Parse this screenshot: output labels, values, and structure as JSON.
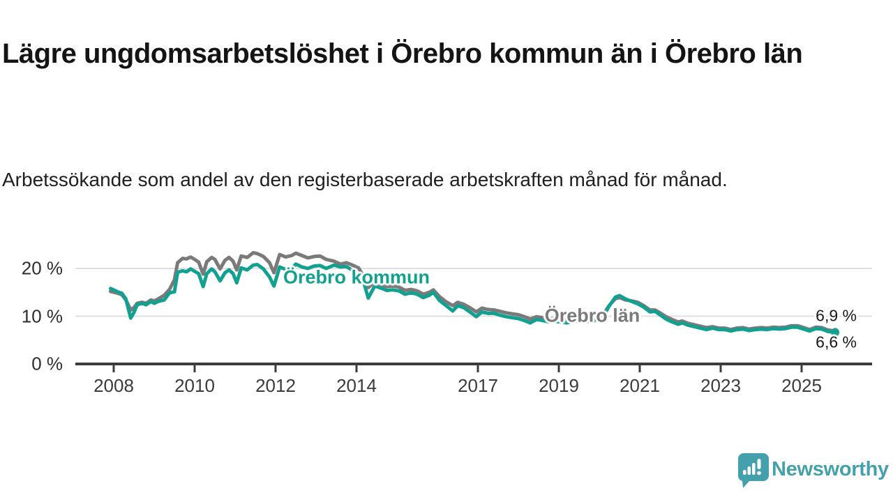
{
  "header": {
    "title": "Lägre ungdomsarbetslöshet i Örebro kommun än i Örebro län",
    "subtitle": "Arbetssökande som andel av den registerbaserade arbetskraften månad för månad."
  },
  "footer": {
    "brand": "Newsworthy",
    "brand_color": "#44a0aa"
  },
  "chart_data": {
    "type": "line",
    "title": "Lägre ungdomsarbetslöshet i Örebro kommun än i Örebro län",
    "subtitle": "Arbetssökande som andel av den registerbaserade arbetskraften månad för månad.",
    "unit": "%",
    "grid": "horizontal",
    "legend": "inline-labels",
    "xlabel": "",
    "ylabel": "",
    "ylim": [
      0,
      24.5
    ],
    "x_domain": [
      2007.9,
      2026.5
    ],
    "y_ticks": [
      {
        "value": 20,
        "label": "20 %"
      },
      {
        "value": 10,
        "label": "10 %"
      },
      {
        "value": 0,
        "label": "0 %"
      }
    ],
    "x_ticks": [
      {
        "year": 2008,
        "label": "2008"
      },
      {
        "year": 2010,
        "label": "2010"
      },
      {
        "year": 2012,
        "label": "2012"
      },
      {
        "year": 2014,
        "label": "2014"
      },
      {
        "year": 2017,
        "label": "2017"
      },
      {
        "year": 2019,
        "label": "2019"
      },
      {
        "year": 2021,
        "label": "2021"
      },
      {
        "year": 2023,
        "label": "2023"
      },
      {
        "year": 2025,
        "label": "2025"
      }
    ],
    "series": [
      {
        "id": "kommun",
        "name": "Örebro kommun",
        "color": "#12a190",
        "last_value": 6.6,
        "last_value_label": "6,6 %",
        "points": [
          [
            2007.92,
            15.8
          ],
          [
            2008.1,
            15.1
          ],
          [
            2008.2,
            14.8
          ],
          [
            2008.3,
            13.6
          ],
          [
            2008.42,
            9.6
          ],
          [
            2008.5,
            10.8
          ],
          [
            2008.58,
            12.4
          ],
          [
            2008.7,
            12.7
          ],
          [
            2008.8,
            12.4
          ],
          [
            2008.92,
            13.1
          ],
          [
            2009.0,
            12.7
          ],
          [
            2009.1,
            13.1
          ],
          [
            2009.25,
            13.4
          ],
          [
            2009.38,
            14.9
          ],
          [
            2009.5,
            15.1
          ],
          [
            2009.58,
            19.2
          ],
          [
            2009.7,
            19.5
          ],
          [
            2009.8,
            19.3
          ],
          [
            2009.9,
            19.9
          ],
          [
            2010.0,
            19.4
          ],
          [
            2010.1,
            18.9
          ],
          [
            2010.21,
            16.2
          ],
          [
            2010.3,
            18.9
          ],
          [
            2010.42,
            19.9
          ],
          [
            2010.5,
            19.3
          ],
          [
            2010.63,
            17.4
          ],
          [
            2010.75,
            19.1
          ],
          [
            2010.85,
            19.7
          ],
          [
            2010.95,
            18.9
          ],
          [
            2011.04,
            17.0
          ],
          [
            2011.15,
            20.1
          ],
          [
            2011.3,
            19.7
          ],
          [
            2011.45,
            20.7
          ],
          [
            2011.55,
            20.8
          ],
          [
            2011.7,
            19.9
          ],
          [
            2011.85,
            18.2
          ],
          [
            2011.96,
            16.3
          ],
          [
            2012.1,
            20.3
          ],
          [
            2012.25,
            19.8
          ],
          [
            2012.4,
            20.0
          ],
          [
            2012.5,
            20.9
          ],
          [
            2012.65,
            20.3
          ],
          [
            2012.8,
            20.0
          ],
          [
            2012.95,
            20.5
          ],
          [
            2013.1,
            20.6
          ],
          [
            2013.25,
            20.0
          ],
          [
            2013.45,
            20.7
          ],
          [
            2013.6,
            20.3
          ],
          [
            2013.75,
            20.4
          ],
          [
            2013.9,
            19.6
          ],
          [
            2014.05,
            18.5
          ],
          [
            2014.2,
            16.5
          ],
          [
            2014.29,
            13.8
          ],
          [
            2014.45,
            16.3
          ],
          [
            2014.6,
            15.9
          ],
          [
            2014.75,
            15.4
          ],
          [
            2014.9,
            15.5
          ],
          [
            2015.05,
            15.3
          ],
          [
            2015.2,
            14.6
          ],
          [
            2015.35,
            14.9
          ],
          [
            2015.5,
            14.6
          ],
          [
            2015.65,
            13.9
          ],
          [
            2015.8,
            14.4
          ],
          [
            2015.9,
            15.0
          ],
          [
            2016.05,
            13.3
          ],
          [
            2016.2,
            12.3
          ],
          [
            2016.38,
            11.1
          ],
          [
            2016.5,
            12.2
          ],
          [
            2016.65,
            11.8
          ],
          [
            2016.8,
            10.9
          ],
          [
            2016.96,
            9.9
          ],
          [
            2017.1,
            10.9
          ],
          [
            2017.25,
            10.6
          ],
          [
            2017.4,
            10.6
          ],
          [
            2017.55,
            10.2
          ],
          [
            2017.7,
            9.9
          ],
          [
            2017.85,
            9.7
          ],
          [
            2018.0,
            9.5
          ],
          [
            2018.15,
            9.1
          ],
          [
            2018.29,
            8.6
          ],
          [
            2018.45,
            9.3
          ],
          [
            2018.6,
            9.1
          ],
          [
            2018.75,
            8.8
          ],
          [
            2018.9,
            8.9
          ],
          [
            2019.05,
            8.8
          ],
          [
            2019.2,
            8.6
          ],
          [
            2019.35,
            8.9
          ],
          [
            2019.5,
            9.1
          ],
          [
            2019.65,
            8.9
          ],
          [
            2019.8,
            8.9
          ],
          [
            2019.95,
            9.3
          ],
          [
            2020.1,
            10.0
          ],
          [
            2020.25,
            12.2
          ],
          [
            2020.4,
            14.0
          ],
          [
            2020.5,
            14.3
          ],
          [
            2020.65,
            13.6
          ],
          [
            2020.8,
            13.1
          ],
          [
            2020.95,
            12.6
          ],
          [
            2021.1,
            11.9
          ],
          [
            2021.25,
            10.9
          ],
          [
            2021.38,
            11.0
          ],
          [
            2021.5,
            10.3
          ],
          [
            2021.65,
            9.4
          ],
          [
            2021.8,
            8.8
          ],
          [
            2021.95,
            8.3
          ],
          [
            2022.05,
            8.6
          ],
          [
            2022.2,
            8.1
          ],
          [
            2022.35,
            7.8
          ],
          [
            2022.5,
            7.5
          ],
          [
            2022.65,
            7.2
          ],
          [
            2022.8,
            7.5
          ],
          [
            2022.95,
            7.2
          ],
          [
            2023.1,
            7.2
          ],
          [
            2023.25,
            6.9
          ],
          [
            2023.4,
            7.2
          ],
          [
            2023.55,
            7.3
          ],
          [
            2023.7,
            7.0
          ],
          [
            2023.85,
            7.2
          ],
          [
            2024.0,
            7.3
          ],
          [
            2024.15,
            7.2
          ],
          [
            2024.3,
            7.4
          ],
          [
            2024.45,
            7.3
          ],
          [
            2024.6,
            7.4
          ],
          [
            2024.75,
            7.7
          ],
          [
            2024.9,
            7.7
          ],
          [
            2025.05,
            7.3
          ],
          [
            2025.2,
            6.9
          ],
          [
            2025.35,
            7.4
          ],
          [
            2025.5,
            7.3
          ],
          [
            2025.65,
            6.8
          ],
          [
            2025.83,
            6.6
          ]
        ]
      },
      {
        "id": "lan",
        "name": "Örebro län",
        "color": "#7a7a7a",
        "last_value": 6.9,
        "last_value_label": "6,9 %",
        "points": [
          [
            2007.92,
            15.2
          ],
          [
            2008.1,
            14.8
          ],
          [
            2008.2,
            14.5
          ],
          [
            2008.3,
            13.4
          ],
          [
            2008.42,
            11.3
          ],
          [
            2008.5,
            11.8
          ],
          [
            2008.58,
            12.7
          ],
          [
            2008.7,
            12.9
          ],
          [
            2008.8,
            12.7
          ],
          [
            2008.92,
            13.4
          ],
          [
            2009.0,
            13.2
          ],
          [
            2009.1,
            13.6
          ],
          [
            2009.25,
            14.4
          ],
          [
            2009.38,
            15.6
          ],
          [
            2009.5,
            17.6
          ],
          [
            2009.58,
            21.2
          ],
          [
            2009.7,
            22.1
          ],
          [
            2009.8,
            22.0
          ],
          [
            2009.9,
            22.4
          ],
          [
            2010.0,
            21.9
          ],
          [
            2010.1,
            21.3
          ],
          [
            2010.21,
            18.8
          ],
          [
            2010.3,
            21.4
          ],
          [
            2010.42,
            22.3
          ],
          [
            2010.5,
            21.9
          ],
          [
            2010.63,
            19.9
          ],
          [
            2010.75,
            21.7
          ],
          [
            2010.85,
            22.3
          ],
          [
            2010.95,
            21.5
          ],
          [
            2011.04,
            19.7
          ],
          [
            2011.15,
            22.6
          ],
          [
            2011.3,
            22.3
          ],
          [
            2011.45,
            23.3
          ],
          [
            2011.55,
            23.1
          ],
          [
            2011.7,
            22.5
          ],
          [
            2011.85,
            21.2
          ],
          [
            2011.96,
            19.1
          ],
          [
            2012.1,
            22.9
          ],
          [
            2012.25,
            22.4
          ],
          [
            2012.4,
            22.7
          ],
          [
            2012.5,
            23.2
          ],
          [
            2012.65,
            22.7
          ],
          [
            2012.8,
            22.2
          ],
          [
            2012.95,
            22.5
          ],
          [
            2013.1,
            22.6
          ],
          [
            2013.25,
            21.9
          ],
          [
            2013.45,
            21.5
          ],
          [
            2013.6,
            20.9
          ],
          [
            2013.75,
            21.2
          ],
          [
            2013.9,
            20.7
          ],
          [
            2014.05,
            20.1
          ],
          [
            2014.2,
            18.0
          ],
          [
            2014.29,
            16.0
          ],
          [
            2014.45,
            17.1
          ],
          [
            2014.6,
            16.6
          ],
          [
            2014.75,
            16.2
          ],
          [
            2014.9,
            16.3
          ],
          [
            2015.05,
            16.1
          ],
          [
            2015.2,
            15.4
          ],
          [
            2015.35,
            15.6
          ],
          [
            2015.5,
            15.3
          ],
          [
            2015.65,
            14.6
          ],
          [
            2015.8,
            15.0
          ],
          [
            2015.9,
            15.5
          ],
          [
            2016.05,
            14.1
          ],
          [
            2016.2,
            13.1
          ],
          [
            2016.38,
            12.2
          ],
          [
            2016.5,
            12.9
          ],
          [
            2016.65,
            12.5
          ],
          [
            2016.8,
            11.8
          ],
          [
            2016.96,
            10.9
          ],
          [
            2017.1,
            11.7
          ],
          [
            2017.25,
            11.4
          ],
          [
            2017.4,
            11.3
          ],
          [
            2017.55,
            11.0
          ],
          [
            2017.7,
            10.7
          ],
          [
            2017.85,
            10.5
          ],
          [
            2018.0,
            10.3
          ],
          [
            2018.15,
            9.9
          ],
          [
            2018.29,
            9.4
          ],
          [
            2018.45,
            9.9
          ],
          [
            2018.6,
            9.7
          ],
          [
            2018.75,
            9.4
          ],
          [
            2018.9,
            9.5
          ],
          [
            2019.05,
            9.4
          ],
          [
            2019.2,
            9.2
          ],
          [
            2019.35,
            9.5
          ],
          [
            2019.5,
            9.6
          ],
          [
            2019.65,
            9.4
          ],
          [
            2019.8,
            9.4
          ],
          [
            2019.95,
            9.8
          ],
          [
            2020.1,
            10.4
          ],
          [
            2020.25,
            12.3
          ],
          [
            2020.4,
            13.7
          ],
          [
            2020.5,
            13.9
          ],
          [
            2020.65,
            13.4
          ],
          [
            2020.8,
            13.2
          ],
          [
            2020.95,
            12.9
          ],
          [
            2021.1,
            12.2
          ],
          [
            2021.25,
            11.3
          ],
          [
            2021.38,
            11.3
          ],
          [
            2021.5,
            10.7
          ],
          [
            2021.65,
            9.9
          ],
          [
            2021.8,
            9.3
          ],
          [
            2021.95,
            8.8
          ],
          [
            2022.05,
            9.0
          ],
          [
            2022.2,
            8.5
          ],
          [
            2022.35,
            8.2
          ],
          [
            2022.5,
            7.9
          ],
          [
            2022.65,
            7.6
          ],
          [
            2022.8,
            7.8
          ],
          [
            2022.95,
            7.5
          ],
          [
            2023.1,
            7.5
          ],
          [
            2023.25,
            7.2
          ],
          [
            2023.4,
            7.5
          ],
          [
            2023.55,
            7.6
          ],
          [
            2023.7,
            7.3
          ],
          [
            2023.85,
            7.5
          ],
          [
            2024.0,
            7.6
          ],
          [
            2024.15,
            7.5
          ],
          [
            2024.3,
            7.7
          ],
          [
            2024.45,
            7.6
          ],
          [
            2024.6,
            7.7
          ],
          [
            2024.75,
            8.0
          ],
          [
            2024.9,
            8.0
          ],
          [
            2025.05,
            7.6
          ],
          [
            2025.2,
            7.2
          ],
          [
            2025.35,
            7.7
          ],
          [
            2025.5,
            7.6
          ],
          [
            2025.65,
            7.1
          ],
          [
            2025.83,
            6.9
          ]
        ]
      }
    ]
  }
}
